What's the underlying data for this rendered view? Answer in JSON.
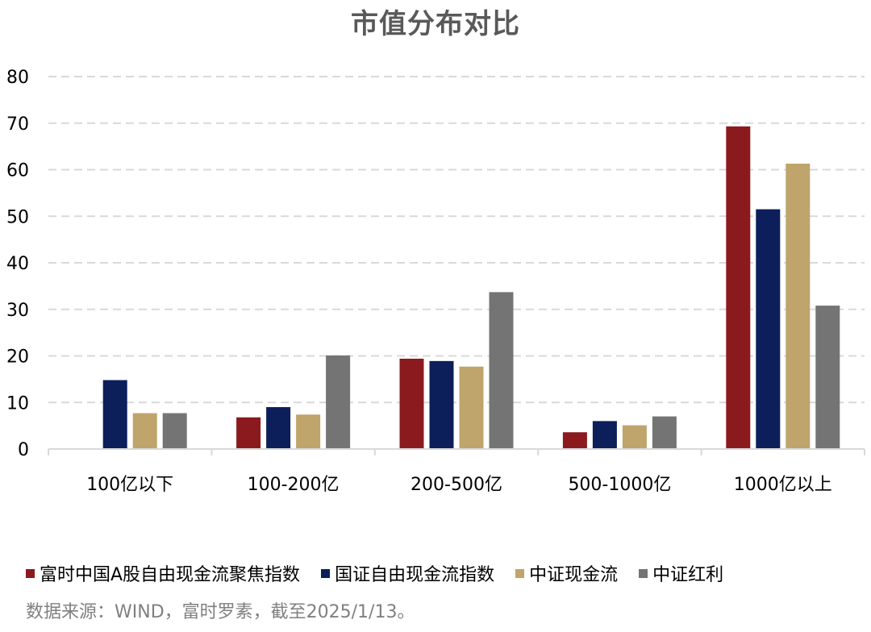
{
  "chart_data": {
    "type": "bar",
    "title": "市值分布对比",
    "categories": [
      "100亿以下",
      "100-200亿",
      "200-500亿",
      "500-1000亿",
      "1000亿以上"
    ],
    "series": [
      {
        "name": "富时中国A股自由现金流聚焦指数",
        "color": "#8B1A1F",
        "values": [
          0,
          6.8,
          19.4,
          3.6,
          69.3
        ]
      },
      {
        "name": "国证自由现金流指数",
        "color": "#0C1F5A",
        "values": [
          14.8,
          9.0,
          18.9,
          6.0,
          51.5
        ]
      },
      {
        "name": "中证现金流",
        "color": "#BFA46B",
        "values": [
          7.7,
          7.4,
          17.7,
          5.1,
          61.3
        ]
      },
      {
        "name": "中证红利",
        "color": "#747474",
        "values": [
          7.7,
          20.1,
          33.7,
          7.0,
          30.8
        ]
      }
    ],
    "yticks": [
      0,
      10,
      20,
      30,
      40,
      50,
      60,
      70,
      80
    ],
    "ylim": [
      0,
      80
    ],
    "grid": true,
    "gridline_color": "#D9D9D9",
    "legend_position": "bottom",
    "source_note": "数据来源：WIND，富时罗素，截至2025/1/13。"
  }
}
